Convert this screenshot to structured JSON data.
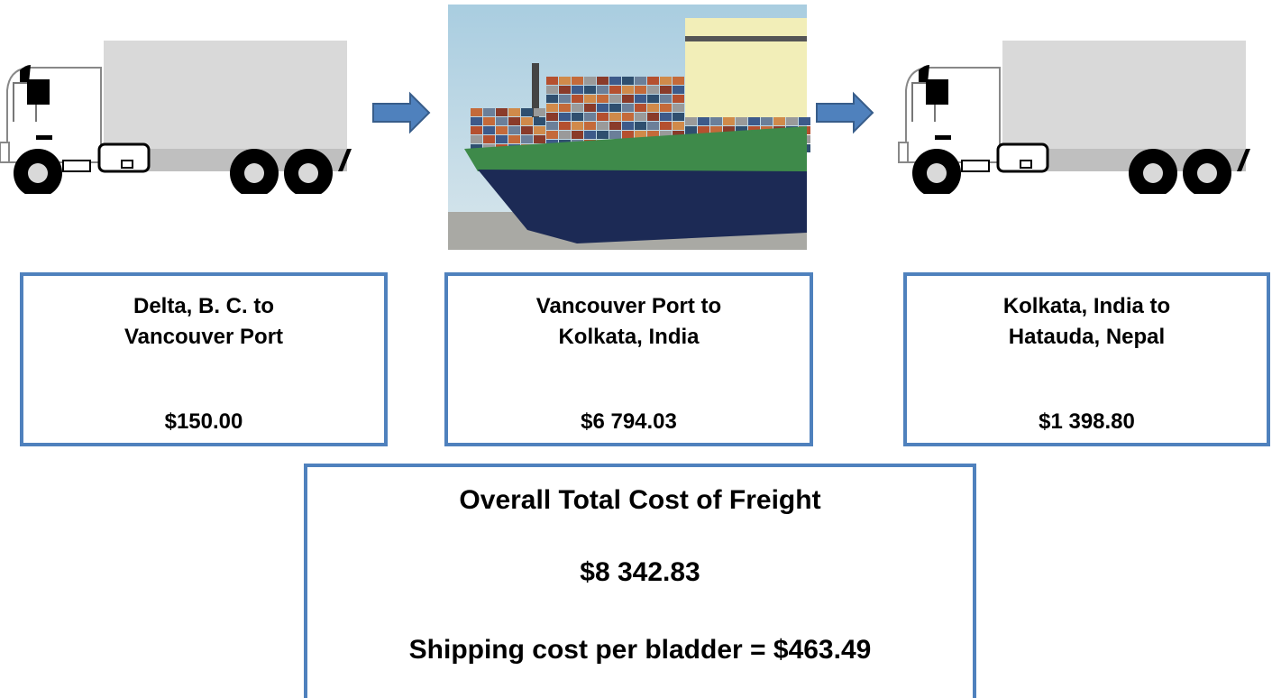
{
  "stages": [
    {
      "label_lines": [
        "Delta, B. C. to",
        "Vancouver Port"
      ],
      "cost": "$150.00"
    },
    {
      "label_lines": [
        "Vancouver Port to",
        "Kolkata, India"
      ],
      "cost": "$6 794.03"
    },
    {
      "label_lines": [
        "Kolkata, India to",
        "Hatauda, Nepal"
      ],
      "cost": "$1 398.80"
    }
  ],
  "total": {
    "title": "Overall Total Cost of Freight",
    "value": "$8 342.83",
    "per_bladder": "Shipping cost per bladder = $463.49"
  }
}
